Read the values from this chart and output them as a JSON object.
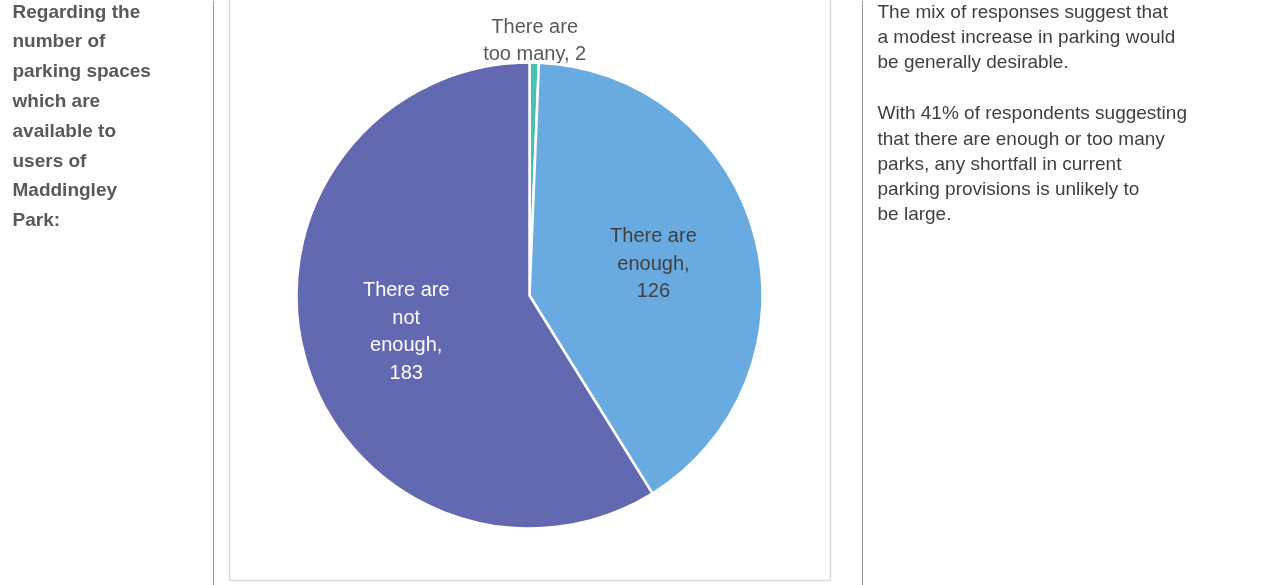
{
  "chart_data": {
    "type": "pie",
    "title": "Regarding the number of parking spaces which are available to users of Maddingley Park:",
    "annotations": [
      "The mix of responses suggest that a modest increase in parking would be generally desirable.",
      "With 41% of respondents suggesting that there are enough or too many parks, any shortfall in current parking provisions is unlikely to be large."
    ],
    "categories": [
      null,
      null,
      null
    ],
    "value_labels": [
      "There are too many, 2",
      "There are enough, 126",
      "There are not enough, 183"
    ],
    "values": [
      2,
      126,
      183
    ],
    "colors": [
      "#4bc1b5",
      "#69abe0",
      "#6369b0"
    ]
  }
}
